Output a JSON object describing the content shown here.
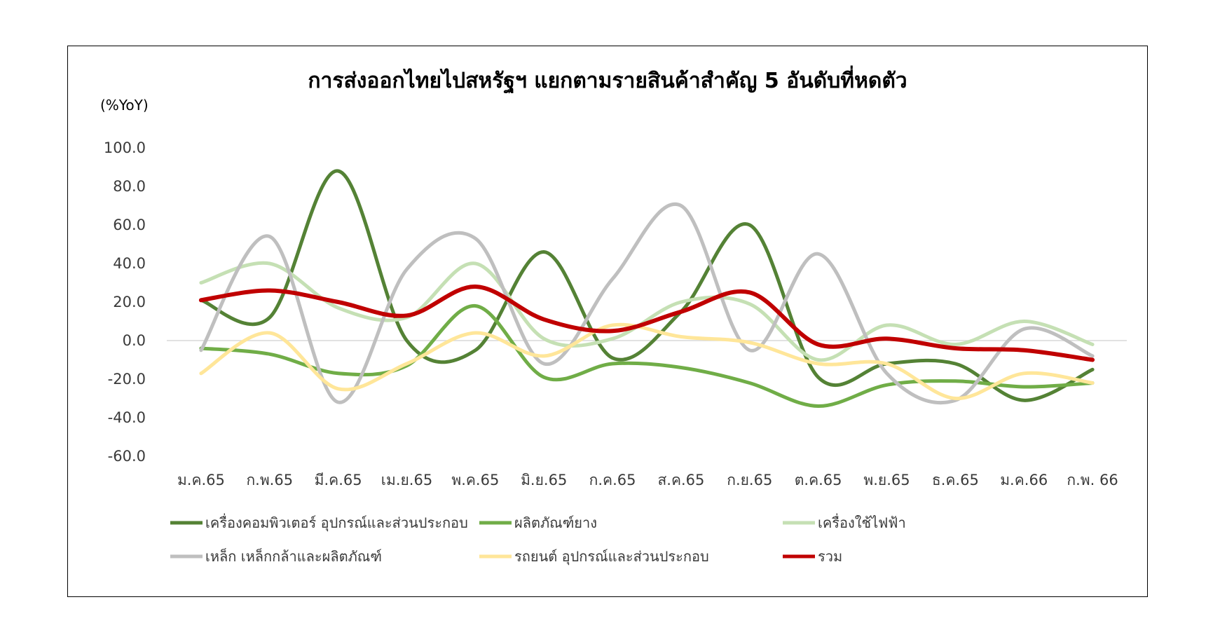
{
  "chart_data": {
    "type": "line",
    "title": "การส่งออกไทยไปสหรัฐฯ แยกตามรายสินค้าสำคัญ 5 อันดับที่หดตัว",
    "ylabel": "(%YoY)",
    "xlabel": "",
    "categories": [
      "ม.ค.65",
      "ก.พ.65",
      "มี.ค.65",
      "เม.ย.65",
      "พ.ค.65",
      "มิ.ย.65",
      "ก.ค.65",
      "ส.ค.65",
      "ก.ย.65",
      "ต.ค.65",
      "พ.ย.65",
      "ธ.ค.65",
      "ม.ค.66",
      "ก.พ. 66"
    ],
    "ylim": [
      -60,
      100
    ],
    "yticks": [
      "100.0",
      "80.0",
      "60.0",
      "40.0",
      "20.0",
      "0.0",
      "-20.0",
      "-40.0",
      "-60.0"
    ],
    "ytick_values": [
      100,
      80,
      60,
      40,
      20,
      0,
      -20,
      -40,
      -60
    ],
    "grid": false,
    "legend_position": "bottom",
    "series": [
      {
        "name": "เครื่องคอมพิวเตอร์ อุปกรณ์และส่วนประกอบ",
        "color": "#548235",
        "values": [
          21,
          12,
          88,
          0,
          -5,
          46,
          -9,
          15,
          60,
          -19,
          -12,
          -12,
          -31,
          -15
        ]
      },
      {
        "name": "ผลิตภัณฑ์ยาง",
        "color": "#70AD47",
        "values": [
          -4,
          -7,
          -17,
          -13,
          18,
          -19,
          -12,
          -14,
          -22,
          -34,
          -23,
          -21,
          -24,
          -22
        ]
      },
      {
        "name": "เครื่องใช้ไฟฟ้า",
        "color": "#C5E0B4",
        "values": [
          30,
          40,
          17,
          12,
          40,
          1,
          1,
          20,
          19,
          -10,
          8,
          -2,
          10,
          -2
        ]
      },
      {
        "name": "เหล็ก เหล็กกล้าและผลิตภัณฑ์",
        "color": "#BFBFBF",
        "values": [
          -5,
          54,
          -32,
          37,
          53,
          -12,
          32,
          70,
          -5,
          45,
          -17,
          -31,
          6,
          -8
        ]
      },
      {
        "name": "รถยนต์ อุปกรณ์และส่วนประกอบ",
        "color": "#FFE699",
        "values": [
          -17,
          4,
          -25,
          -12,
          4,
          -8,
          8,
          2,
          -1,
          -12,
          -12,
          -30,
          -17,
          -22
        ]
      },
      {
        "name": "รวม",
        "color": "#C00000",
        "values": [
          21,
          26,
          20,
          13,
          28,
          11,
          5,
          15,
          25,
          -2,
          1,
          -4,
          -5,
          -10
        ]
      }
    ]
  }
}
